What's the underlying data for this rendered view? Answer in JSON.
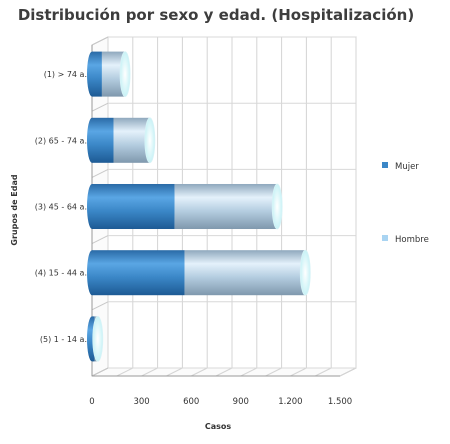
{
  "chart_data": {
    "type": "bar",
    "orientation": "horizontal",
    "stacked": true,
    "title": "Distribución por sexo y edad. (Hospitalización)",
    "xlabel": "Casos",
    "ylabel": "Grupos de Edad",
    "xlim": [
      0,
      1500
    ],
    "x_ticks": [
      "0",
      "300",
      "600",
      "900",
      "1.200",
      "1.500"
    ],
    "categories": [
      "(1) > 74 a.",
      "(2) 65 - 74 a.",
      "(3) 45 - 64 a.",
      "(4) 15 - 44 a.",
      "(5) 1 - 14 a."
    ],
    "series": [
      {
        "name": "Mujer",
        "color": "#3b87c7",
        "values": [
          60,
          130,
          500,
          560,
          15
        ]
      },
      {
        "name": "Hombre",
        "color": "#a9d4f2",
        "values": [
          140,
          220,
          620,
          730,
          20
        ]
      }
    ],
    "grid": true,
    "legend_position": "right"
  }
}
